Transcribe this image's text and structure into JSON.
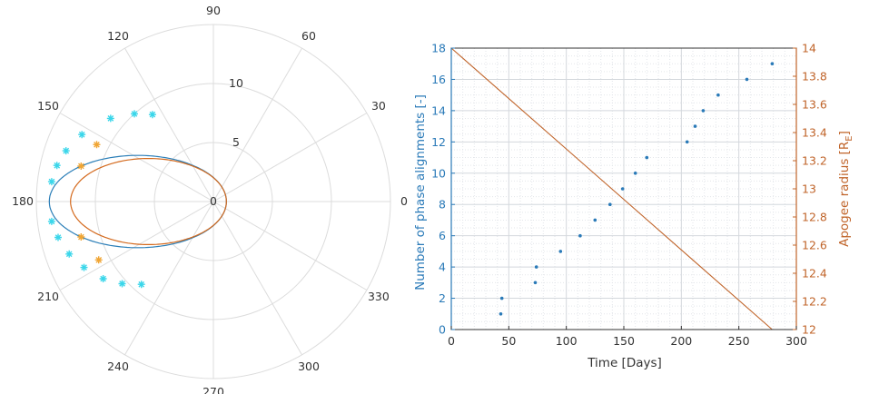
{
  "chart_data": [
    {
      "type": "polar",
      "title": "",
      "angle_ticks": [
        "0",
        "30",
        "60",
        "90",
        "120",
        "150",
        "180",
        "210",
        "240",
        "270",
        "300",
        "330"
      ],
      "radius_ticks": [
        "0",
        "5",
        "10"
      ],
      "rlim": [
        0,
        15
      ],
      "grid": true,
      "series": [
        {
          "color": "#2c7fb8",
          "orbit": {
            "apogee_radius": 13.9,
            "perigee_radius": 1.1,
            "apogee_angle_deg": 180
          },
          "marker_color": "#3ad6ea",
          "marker": "star",
          "markers": [
            {
              "theta": 173,
              "r": 13.8
            },
            {
              "theta": 167,
              "r": 13.6
            },
            {
              "theta": 161,
              "r": 13.2
            },
            {
              "theta": 153,
              "r": 12.5
            },
            {
              "theta": 141,
              "r": 11.2
            },
            {
              "theta": 132,
              "r": 10.0
            },
            {
              "theta": 125,
              "r": 9.0
            },
            {
              "theta": 187,
              "r": 13.8
            },
            {
              "theta": 193,
              "r": 13.5
            },
            {
              "theta": 200,
              "r": 13.0
            },
            {
              "theta": 207,
              "r": 12.3
            },
            {
              "theta": 215,
              "r": 11.4
            },
            {
              "theta": 222,
              "r": 10.4
            },
            {
              "theta": 229,
              "r": 9.3
            }
          ]
        },
        {
          "color": "#d46a1e",
          "orbit": {
            "apogee_radius": 12.1,
            "perigee_radius": 1.1,
            "apogee_angle_deg": 180
          },
          "marker_color": "#f0a534",
          "marker": "star",
          "markers": [
            {
              "theta": 165,
              "r": 11.6
            },
            {
              "theta": 154,
              "r": 11.0
            },
            {
              "theta": 195,
              "r": 11.6
            },
            {
              "theta": 207,
              "r": 10.9
            }
          ]
        }
      ]
    },
    {
      "type": "scatter",
      "title": "",
      "xlabel": "Time [Days]",
      "ylabel": "Number of phase alignments [-]",
      "ylabel_right": "Apogee radius [R",
      "ylabel_right_sub": "E",
      "ylabel_right_close": "]",
      "xlim": [
        0,
        300
      ],
      "ylim": [
        0,
        18
      ],
      "ylim_right": [
        12,
        14
      ],
      "x_ticks": [
        "0",
        "50",
        "100",
        "150",
        "200",
        "250",
        "300"
      ],
      "y_ticks": [
        "0",
        "2",
        "4",
        "6",
        "8",
        "10",
        "12",
        "14",
        "16",
        "18"
      ],
      "y_ticks_right": [
        "12",
        "12.2",
        "12.4",
        "12.6",
        "12.8",
        "13",
        "13.2",
        "13.4",
        "13.6",
        "13.8",
        "14"
      ],
      "grid": true,
      "minor_grid": true,
      "left_axis_color": "#2a7ab8",
      "right_axis_color": "#c0642a",
      "series": [
        {
          "axis": "left",
          "kind": "points",
          "color": "#2a7ab8",
          "x": [
            43,
            44,
            73,
            74,
            95,
            112,
            125,
            138,
            149,
            160,
            170,
            205,
            212,
            219,
            232,
            257,
            279
          ],
          "y": [
            1,
            2,
            3,
            4,
            5,
            6,
            7,
            8,
            9,
            10,
            11,
            12,
            13,
            14,
            15,
            16,
            17
          ]
        },
        {
          "axis": "right",
          "kind": "line",
          "color": "#c0642a",
          "x": [
            0,
            279
          ],
          "y": [
            14,
            12
          ]
        }
      ]
    }
  ]
}
